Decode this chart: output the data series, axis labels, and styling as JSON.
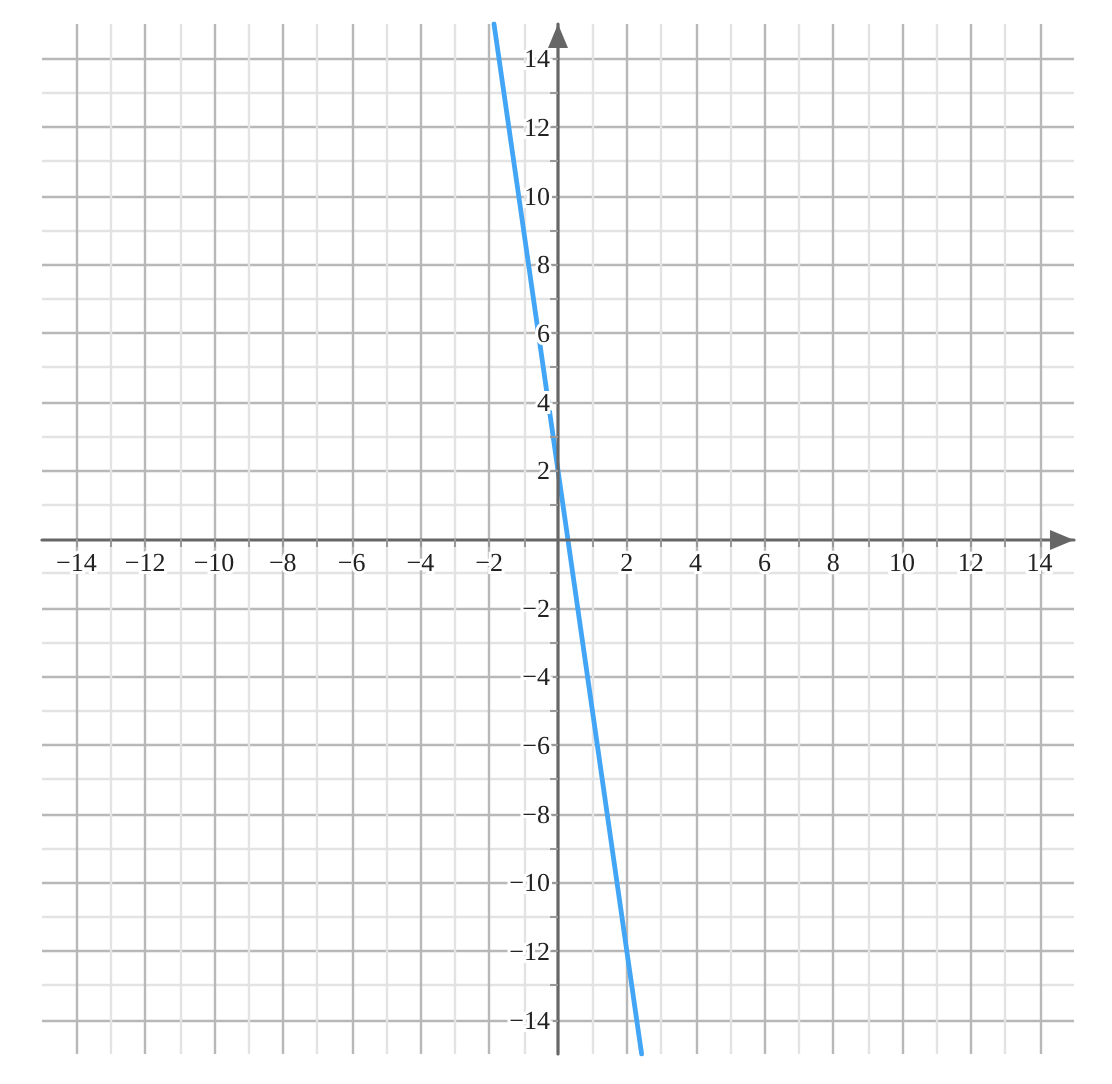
{
  "chart_data": {
    "type": "line",
    "x": [
      -1.86,
      -1,
      0,
      1,
      2,
      2.43
    ],
    "values": [
      15,
      9,
      2,
      -5,
      -12,
      -15
    ],
    "color": "#42a5f5",
    "marker": "none",
    "xlim": [
      -15,
      15
    ],
    "ylim": [
      -15,
      15
    ],
    "xticks": [
      {
        "value": -14,
        "label": "−14"
      },
      {
        "value": -13,
        "label": null
      },
      {
        "value": -12,
        "label": "−12"
      },
      {
        "value": -11,
        "label": null
      },
      {
        "value": -10,
        "label": "−10"
      },
      {
        "value": -9,
        "label": null
      },
      {
        "value": -8,
        "label": "−8"
      },
      {
        "value": -7,
        "label": null
      },
      {
        "value": -6,
        "label": "−6"
      },
      {
        "value": -5,
        "label": null
      },
      {
        "value": -4,
        "label": "−4"
      },
      {
        "value": -3,
        "label": null
      },
      {
        "value": -2,
        "label": "−2"
      },
      {
        "value": -1,
        "label": null
      },
      {
        "value": 1,
        "label": null
      },
      2,
      {
        "value": 3,
        "label": null
      },
      4,
      {
        "value": 5,
        "label": null
      },
      6,
      {
        "value": 7,
        "label": null
      },
      8,
      {
        "value": 9,
        "label": null
      },
      10,
      {
        "value": 11,
        "label": null
      },
      12,
      {
        "value": 13,
        "label": null
      },
      14
    ],
    "yticks": [
      {
        "value": -14,
        "label": "−14"
      },
      {
        "value": -13,
        "label": null
      },
      {
        "value": -12,
        "label": "−12"
      },
      {
        "value": -11,
        "label": null
      },
      {
        "value": -10,
        "label": "−10"
      },
      {
        "value": -9,
        "label": null
      },
      {
        "value": -8,
        "label": "−8"
      },
      {
        "value": -7,
        "label": null
      },
      {
        "value": -6,
        "label": "−6"
      },
      {
        "value": -5,
        "label": null
      },
      {
        "value": -4,
        "label": "−4"
      },
      {
        "value": -3,
        "label": null
      },
      {
        "value": -2,
        "label": "−2"
      },
      {
        "value": -1,
        "label": null
      },
      {
        "value": 1,
        "label": null
      },
      2,
      {
        "value": 3,
        "label": null
      },
      4,
      {
        "value": 5,
        "label": null
      },
      6,
      {
        "value": 7,
        "label": null
      },
      8,
      {
        "value": 9,
        "label": null
      },
      10,
      {
        "value": 11,
        "label": null
      },
      12,
      {
        "value": 13,
        "label": null
      },
      14
    ],
    "grid": true
  }
}
